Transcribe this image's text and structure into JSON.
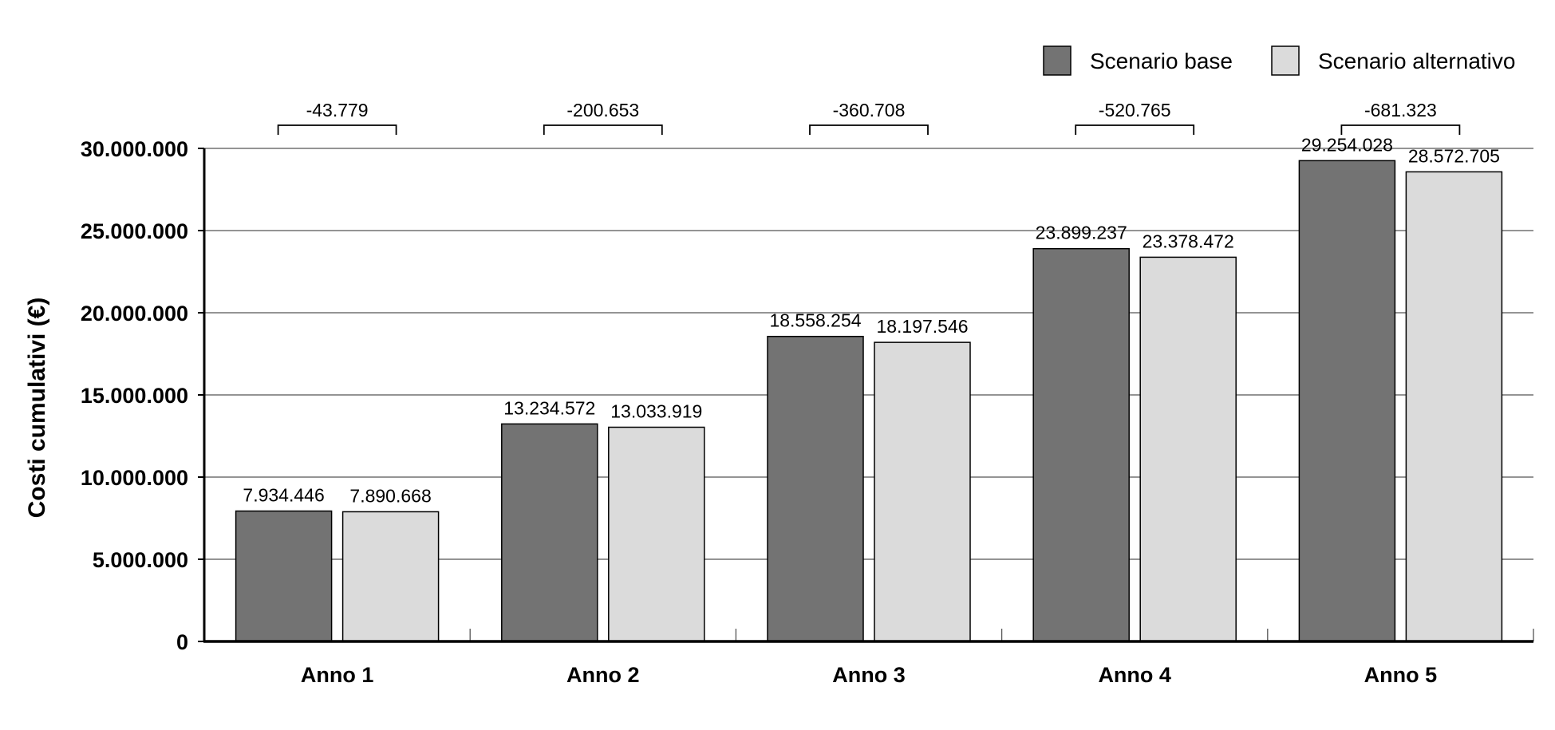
{
  "chart_data": {
    "type": "bar",
    "title": "",
    "xlabel": "",
    "ylabel": "Costi cumulativi (€)",
    "ylim": [
      0,
      30000000
    ],
    "yticks": [
      0,
      5000000,
      10000000,
      15000000,
      20000000,
      25000000,
      30000000
    ],
    "ytick_labels": [
      "0",
      "5.000.000",
      "10.000.000",
      "15.000.000",
      "20.000.000",
      "25.000.000",
      "30.000.000"
    ],
    "grid": true,
    "legend_position": "top-right",
    "categories": [
      "Anno 1",
      "Anno 2",
      "Anno 3",
      "Anno 4",
      "Anno 5"
    ],
    "series": [
      {
        "name": "Scenario base",
        "color": "#737373",
        "values": [
          7934446,
          13234572,
          18558254,
          23899237,
          29254028
        ],
        "labels": [
          "7.934.446",
          "13.234.572",
          "18.558.254",
          "23.899.237",
          "29.254.028"
        ]
      },
      {
        "name": "Scenario alternativo",
        "color": "#dbdbdb",
        "values": [
          7890668,
          13033919,
          18197546,
          23378472,
          28572705
        ],
        "labels": [
          "7.890.668",
          "13.033.919",
          "18.197.546",
          "23.378.472",
          "28.572.705"
        ]
      }
    ],
    "annotations": {
      "differences": [
        -43779,
        -200653,
        -360708,
        -520765,
        -681323
      ],
      "difference_labels": [
        "-43.779",
        "-200.653",
        "-360.708",
        "-520.765",
        "-681.323"
      ]
    }
  }
}
